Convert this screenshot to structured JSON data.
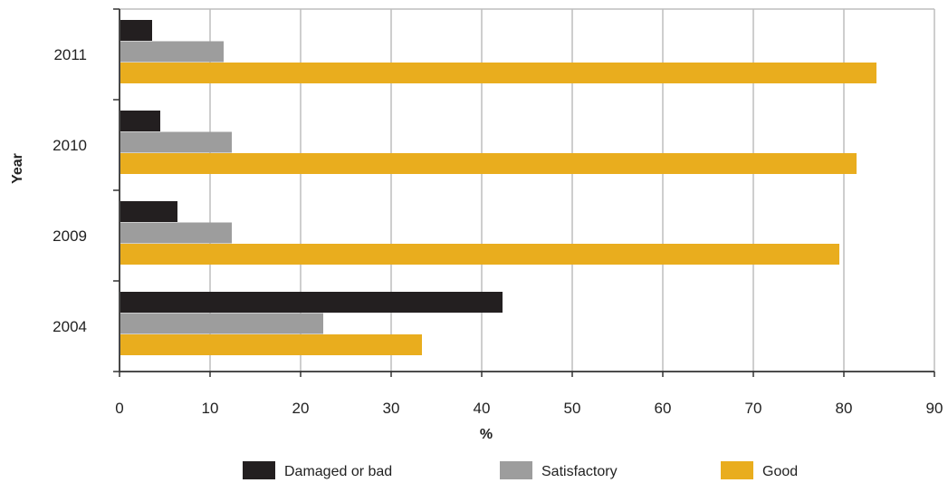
{
  "chart_data": {
    "type": "bar",
    "orientation": "horizontal",
    "categories": [
      "2011",
      "2010",
      "2009",
      "2004"
    ],
    "series": [
      {
        "name": "Damaged or bad",
        "color": "#231f20",
        "values": [
          3.6,
          4.5,
          6.4,
          42.3
        ]
      },
      {
        "name": "Satisfactory",
        "color": "#9d9d9d",
        "values": [
          11.5,
          12.4,
          12.4,
          22.5
        ]
      },
      {
        "name": "Good",
        "color": "#e9ad1e",
        "values": [
          83.6,
          81.4,
          79.5,
          33.4
        ]
      }
    ],
    "xlabel": "%",
    "ylabel": "Year",
    "xlim": [
      0,
      90
    ],
    "xticks": [
      "0",
      "10",
      "20",
      "30",
      "40",
      "50",
      "60",
      "70",
      "80",
      "90"
    ],
    "grid": "vertical",
    "legend_position": "bottom"
  }
}
